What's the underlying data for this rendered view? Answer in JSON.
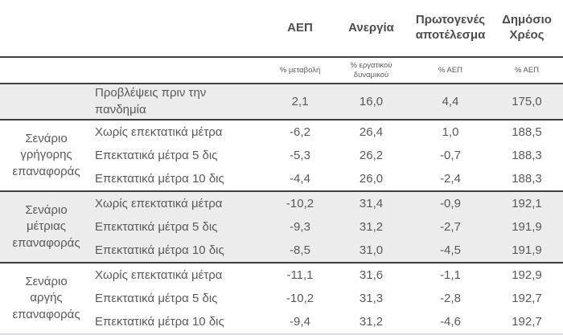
{
  "table": {
    "columns": [
      {
        "label": "ΑΕΠ",
        "unit": "% μεταβολή"
      },
      {
        "label": "Ανεργία",
        "unit": "% εργατικού δυναμικού"
      },
      {
        "label": "Πρωτογενές αποτέλεσμα",
        "unit": "% ΑΕΠ"
      },
      {
        "label": "Δημόσιο Χρέος",
        "unit": "% ΑΕΠ"
      }
    ],
    "baseline": {
      "label": "Προβλέψεις πριν την πανδημία",
      "values": [
        "2,1",
        "16,0",
        "4,4",
        "175,0"
      ],
      "shaded": true
    },
    "groups": [
      {
        "scenario": "Σενάριο γρήγορης επαναφοράς",
        "shaded": false,
        "rows": [
          {
            "label": "Χωρίς επεκτατικά μέτρα",
            "values": [
              "-6,2",
              "26,4",
              "1,0",
              "188,5"
            ]
          },
          {
            "label": "Επεκτατικά μέτρα 5 δις",
            "values": [
              "-5,3",
              "26,2",
              "-0,7",
              "188,3"
            ]
          },
          {
            "label": "Επεκτατικά μέτρα 10 δις",
            "values": [
              "-4,4",
              "26,0",
              "-2,4",
              "188,3"
            ]
          }
        ]
      },
      {
        "scenario": "Σενάριο μέτριας επαναφοράς",
        "shaded": true,
        "rows": [
          {
            "label": "Χωρίς επεκτατικά μέτρα",
            "values": [
              "-10,2",
              "31,4",
              "-0,9",
              "192,1"
            ]
          },
          {
            "label": "Επεκτατικά μέτρα 5 δις",
            "values": [
              "-9,3",
              "31,2",
              "-2,7",
              "191,9"
            ]
          },
          {
            "label": "Επεκτατικά μέτρα 10 δις",
            "values": [
              "-8,5",
              "31,0",
              "-4,5",
              "191,9"
            ]
          }
        ]
      },
      {
        "scenario": "Σενάριο αργής επαναφοράς",
        "shaded": false,
        "rows": [
          {
            "label": "Χωρίς επεκτατικά μέτρα",
            "values": [
              "-11,1",
              "31,6",
              "-1,1",
              "192,9"
            ]
          },
          {
            "label": "Επεκτατικά μέτρα 5 δις",
            "values": [
              "-10,2",
              "31,3",
              "-2,8",
              "192,7"
            ]
          },
          {
            "label": "Επεκτατικά μέτρα 10 δις",
            "values": [
              "-9,4",
              "31,2",
              "-4,6",
              "192,7"
            ]
          }
        ]
      }
    ],
    "colors": {
      "shaded_bg": "#ececec",
      "rule_dark": "#3f3f3f",
      "rule_light": "#d9dde2",
      "text": "#595959",
      "header_text": "#4d4d4d"
    }
  }
}
